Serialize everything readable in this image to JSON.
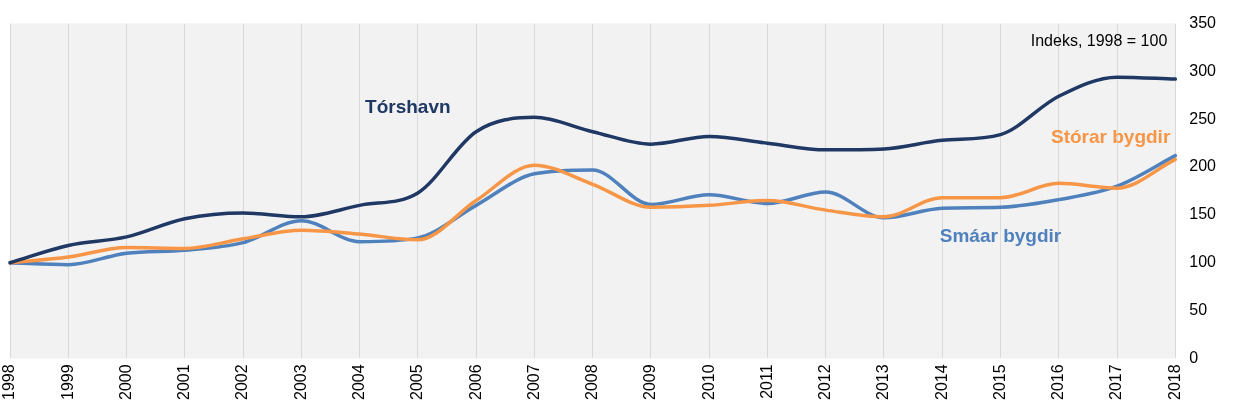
{
  "chart_data": {
    "type": "line",
    "annotations": [
      "Indeks, 1998 = 100"
    ],
    "categories": [
      "1998",
      "1999",
      "2000",
      "2001",
      "2002",
      "2003",
      "2004",
      "2005",
      "2006",
      "2007",
      "2008",
      "2009",
      "2010",
      "2011",
      "2012",
      "2013",
      "2014",
      "2015",
      "2016",
      "2017",
      "2018"
    ],
    "series": [
      {
        "name": "Tórshavn",
        "color": "#1f3864",
        "values": [
          100,
          118,
          127,
          146,
          152,
          148,
          160,
          173,
          237,
          252,
          237,
          224,
          232,
          225,
          218,
          219,
          228,
          234,
          274,
          294,
          292
        ]
      },
      {
        "name": "Stórar bygdir",
        "color": "#f79646",
        "values": [
          100,
          106,
          116,
          115,
          125,
          134,
          130,
          124,
          165,
          202,
          182,
          158,
          160,
          165,
          155,
          148,
          168,
          168,
          183,
          178,
          208
        ]
      },
      {
        "name": "Smáar bygdir",
        "color": "#4f81bd",
        "values": [
          100,
          98,
          110,
          113,
          121,
          144,
          122,
          126,
          160,
          193,
          197,
          161,
          171,
          162,
          174,
          147,
          157,
          158,
          166,
          180,
          212
        ]
      }
    ],
    "ylim": [
      0,
      350
    ],
    "yticks": [
      0,
      50,
      100,
      150,
      200,
      250,
      300,
      350
    ],
    "grid": "x",
    "legend": false,
    "marker": "none",
    "line_style": "solid"
  }
}
